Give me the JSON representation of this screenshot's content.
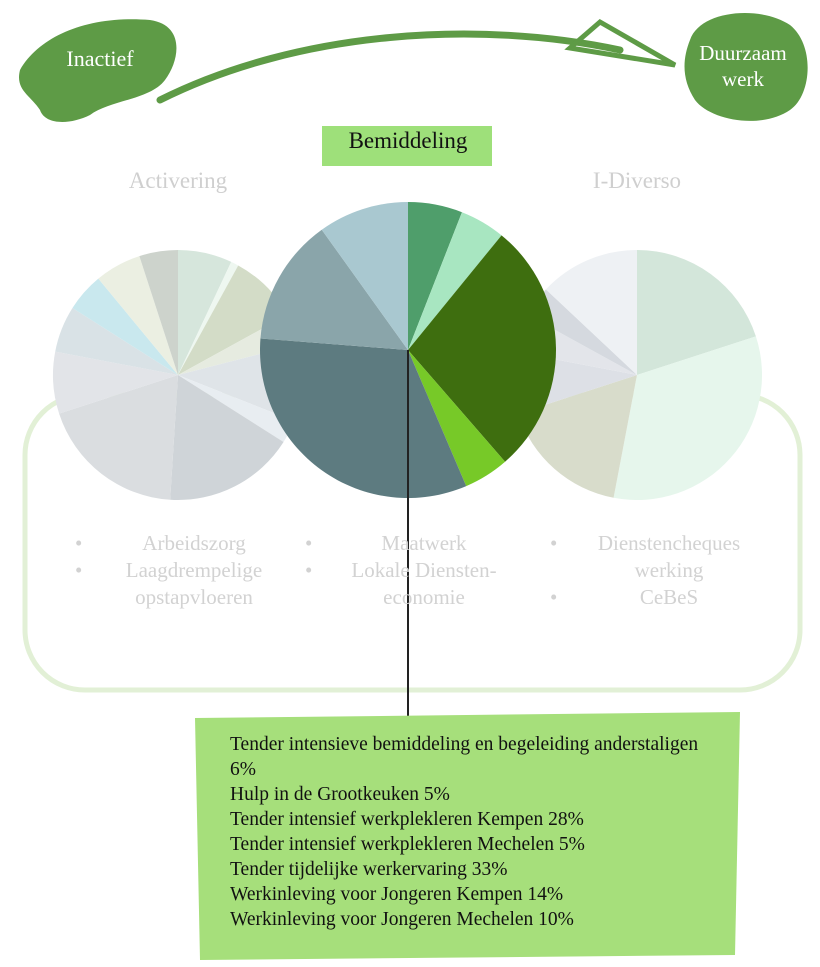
{
  "header": {
    "start": "Inactief",
    "end": "Duurzaam werk"
  },
  "chart_data": [
    {
      "type": "pie",
      "title": "Activering",
      "values": [
        7,
        1,
        9,
        4,
        10,
        3,
        17,
        19,
        8,
        6,
        5,
        6,
        5
      ],
      "colors": [
        "#d6e6dc",
        "#eef7f0",
        "#d3dcc7",
        "#e6ebe0",
        "#dfe4e8",
        "#e8edf1",
        "#cfd4d8",
        "#dadde0",
        "#e2e4e8",
        "#d9e2e6",
        "#c9e8ee",
        "#ebefe2",
        "#cdd3cc"
      ],
      "bullets": [
        "Arbeidszorg",
        "Laagdrempelige opstapvloeren"
      ]
    },
    {
      "type": "pie",
      "title": "Bemiddeling",
      "categories": [
        "Tender intensieve bemiddeling en begeleiding anderstaligen",
        "Hulp in de Grootkeuken",
        "Tender intensief werkplekleren Kempen",
        "Tender intensief werkplekleren Mechelen",
        "Tender tijdelijke werkervaring",
        "Werkinleving voor Jongeren Kempen",
        "Werkinleving voor Jongeren Mechelen"
      ],
      "values": [
        6,
        5,
        28,
        5,
        33,
        14,
        10
      ],
      "value_labels": [
        "6%",
        "5%",
        "28%",
        "5%",
        "33%",
        "14%",
        "10%"
      ],
      "colors": [
        "#4f9e6b",
        "#a8e6c1",
        "#3e6e0f",
        "#77c928",
        "#5d7b80",
        "#8aa5aa",
        "#a9c8d0"
      ],
      "bullets": [
        "Maatwerk",
        "Lokale Diensten-economie"
      ]
    },
    {
      "type": "pie",
      "title": "I-Diverso",
      "values": [
        20,
        33,
        17,
        8,
        5,
        4,
        13
      ],
      "colors": [
        "#d3e6da",
        "#e6f6ec",
        "#d8dccb",
        "#dde0e6",
        "#e3e5ea",
        "#d5d9df",
        "#eef1f4"
      ],
      "bullets": [
        "Dienstencheques werking",
        "CeBeS"
      ]
    }
  ]
}
